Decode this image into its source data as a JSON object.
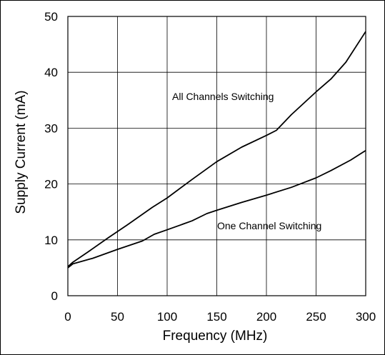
{
  "chart_data": {
    "type": "line",
    "xlabel": "Frequency (MHz)",
    "ylabel": "Supply Current (mA)",
    "xlim": [
      0,
      300
    ],
    "ylim": [
      0,
      50
    ],
    "xticks": [
      0,
      50,
      100,
      150,
      200,
      250,
      300
    ],
    "yticks": [
      0,
      10,
      20,
      30,
      40,
      50
    ],
    "x_tick_labels": [
      "0",
      "50",
      "100",
      "150",
      "200",
      "250",
      "300"
    ],
    "y_tick_labels": [
      "0",
      "10",
      "20",
      "30",
      "40",
      "50"
    ],
    "grid": true,
    "line_color": "#000000",
    "annotations": [
      {
        "text": "All Channels Switching",
        "series": 0
      },
      {
        "text": "One Channel Switching",
        "series": 1
      }
    ],
    "series": [
      {
        "name": "All Channels Switching",
        "x": [
          0,
          5,
          20,
          40,
          60,
          85,
          100,
          125,
          150,
          175,
          200,
          210,
          225,
          250,
          265,
          280,
          300
        ],
        "y": [
          5.2,
          6.0,
          7.8,
          10.3,
          12.7,
          15.8,
          17.5,
          20.8,
          24.0,
          26.6,
          28.7,
          29.6,
          32.4,
          36.5,
          38.8,
          41.8,
          47.3
        ]
      },
      {
        "name": "One Channel Switching",
        "x": [
          0,
          5,
          25,
          50,
          75,
          87,
          100,
          125,
          140,
          150,
          175,
          200,
          225,
          250,
          265,
          285,
          300
        ],
        "y": [
          5.0,
          5.7,
          6.7,
          8.3,
          9.8,
          11.0,
          11.8,
          13.4,
          14.7,
          15.3,
          16.7,
          18.0,
          19.4,
          21.1,
          22.4,
          24.3,
          26.0
        ]
      }
    ]
  }
}
